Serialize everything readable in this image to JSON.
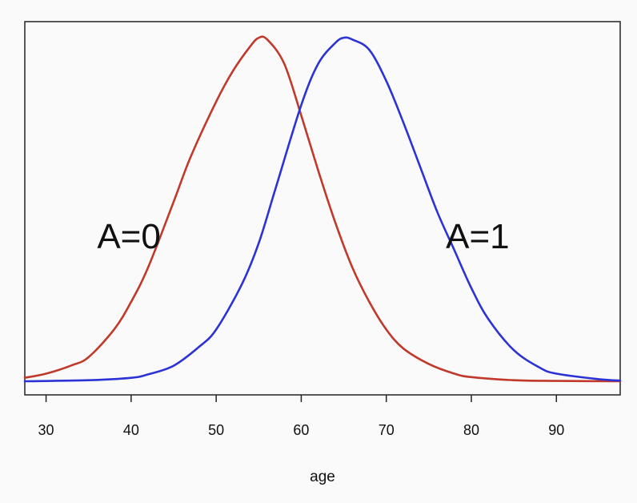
{
  "chart_data": {
    "type": "line",
    "xlabel": "age",
    "ylabel": "",
    "xlim": [
      27.5,
      97.5
    ],
    "ylim": [
      0,
      1.05
    ],
    "x_ticks": [
      30,
      40,
      50,
      60,
      70,
      80,
      90
    ],
    "y_axis_visible": false,
    "grid": false,
    "series": [
      {
        "name": "A=0",
        "color": "#c0392b",
        "x": [
          27.5,
          30,
          33,
          35,
          38,
          40,
          42,
          45,
          47,
          50,
          52,
          54,
          55,
          56,
          58,
          60,
          62,
          64,
          66,
          68,
          70,
          72,
          75,
          78,
          80,
          85,
          90,
          97.5
        ],
        "y": [
          0.01,
          0.022,
          0.046,
          0.07,
          0.15,
          0.23,
          0.33,
          0.52,
          0.65,
          0.81,
          0.9,
          0.97,
          0.995,
          0.99,
          0.92,
          0.77,
          0.61,
          0.46,
          0.33,
          0.23,
          0.15,
          0.095,
          0.05,
          0.022,
          0.012,
          0.003,
          0.001,
          0.0
        ]
      },
      {
        "name": "A=1",
        "color": "#2c33d6",
        "x": [
          27.5,
          35,
          40,
          42,
          45,
          48,
          50,
          53,
          55,
          57,
          60,
          62,
          64,
          65,
          66,
          68,
          70,
          72,
          74,
          76,
          78,
          80,
          82,
          85,
          88,
          90,
          95,
          97.5
        ],
        "y": [
          0.0,
          0.003,
          0.01,
          0.02,
          0.045,
          0.1,
          0.15,
          0.28,
          0.4,
          0.56,
          0.8,
          0.92,
          0.98,
          0.995,
          0.99,
          0.96,
          0.87,
          0.75,
          0.62,
          0.49,
          0.38,
          0.27,
          0.18,
          0.09,
          0.04,
          0.022,
          0.006,
          0.002
        ]
      }
    ],
    "annotations": [
      {
        "text": "A=0",
        "x": 36,
        "y": 0.42
      },
      {
        "text": "A=1",
        "x": 77,
        "y": 0.42
      }
    ]
  }
}
